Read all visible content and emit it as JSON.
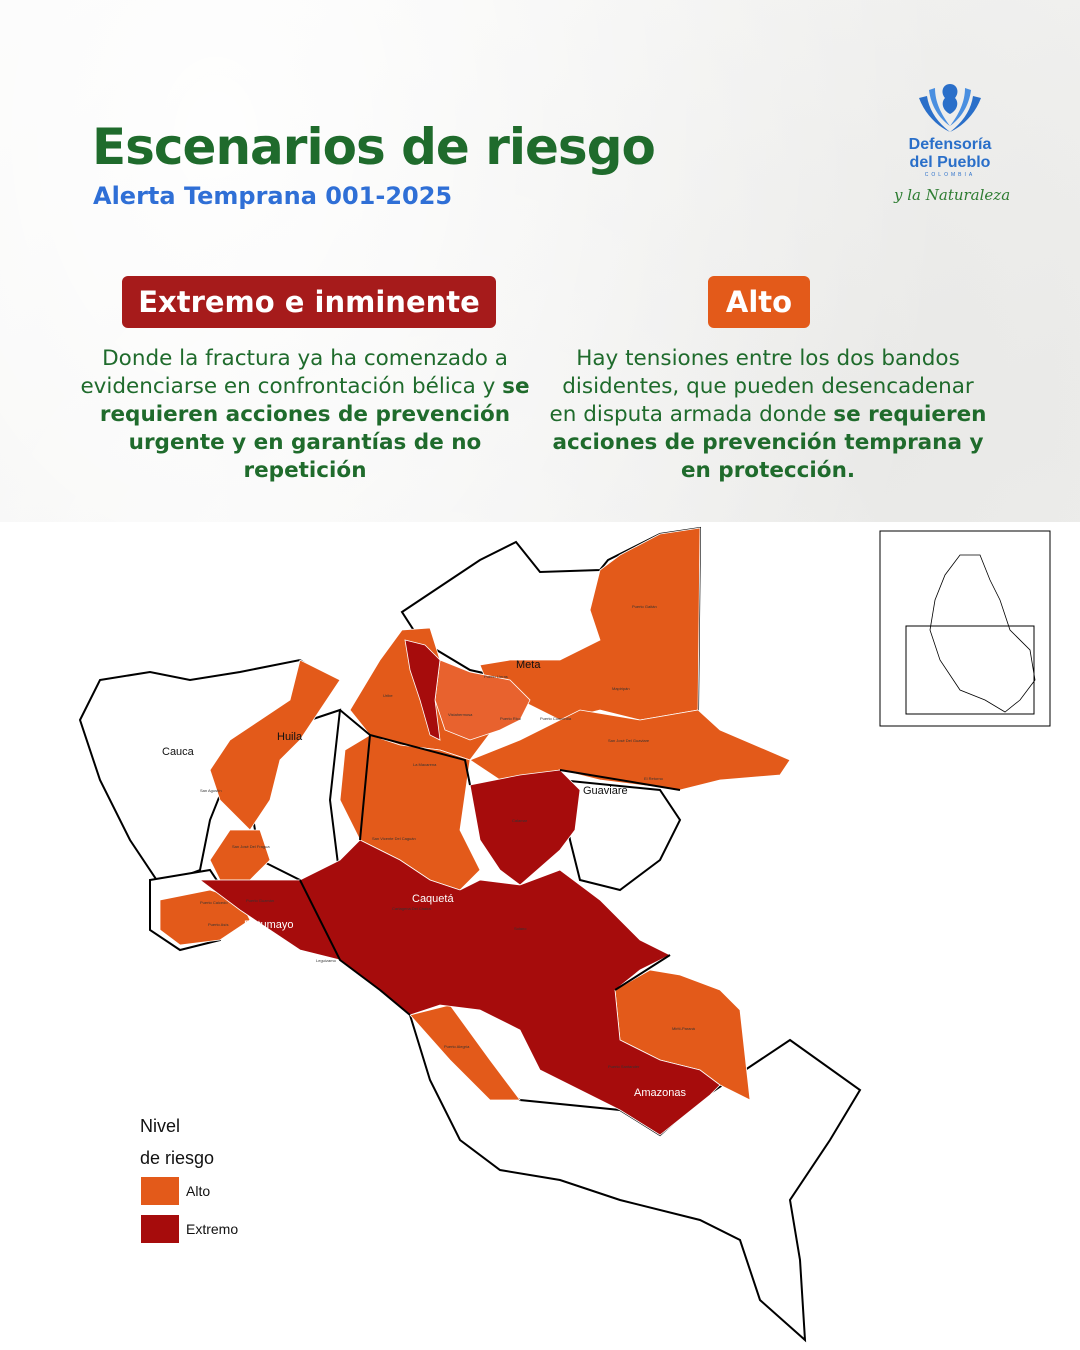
{
  "header": {
    "title": "Escenarios de riesgo",
    "subtitle": "Alerta Temprana 001-2025"
  },
  "logo": {
    "line1": "Defensoría",
    "line2": "del Pueblo",
    "country": "COLOMBIA",
    "tagline": "y la Naturaleza"
  },
  "levels": {
    "extremo": {
      "badge": "Extremo e inminente",
      "text_plain": "Donde la fractura ya ha comenzado a evidenciarse en confrontación bélica y ",
      "text_bold": "se requieren acciones de prevención urgente y en garantías de no repetición"
    },
    "alto": {
      "badge": "Alto",
      "text_plain": "Hay tensiones entre los dos bandos disidentes, que pueden desencadenar en disputa armada donde ",
      "text_bold": "se requieren acciones de prevención temprana y en protección."
    }
  },
  "colors": {
    "title_green": "#1f6b2c",
    "subtitle_blue": "#2f6fd6",
    "extremo": "#a61b1b",
    "alto": "#e35a1a"
  },
  "map": {
    "departments": {
      "meta": "Meta",
      "huila": "Huila",
      "cauca": "Cauca",
      "guaviare": "Guaviare",
      "caqueta": "Caquetá",
      "putumayo": "Putumayo",
      "amazonas": "Amazonas"
    },
    "municipalities": {
      "puerto_gaitan": "Puerto Gaitán",
      "mapiripan": "Mapiripán",
      "puerto_lleras": "Puerto Lleras",
      "puerto_rico": "Puerto Rico",
      "puerto_concordia": "Puerto Concordia",
      "vistahermosa": "Vistahermosa",
      "uribe": "Uribe",
      "la_macarena": "La Macarena",
      "san_jose_guaviare": "San José Del Guaviare",
      "el_retorno": "El Retorno",
      "calamar": "Calamar",
      "san_vicente": "San Vicente Del Caguán",
      "cartagena_chaira": "Cartagena Del Chairá",
      "solano": "Solano",
      "san_jose_fragua": "San José Del Fragua",
      "puerto_guzman": "Puerto Guzmán",
      "puerto_caicedo": "Puerto Caicedo",
      "puerto_asis": "Puerto Asís",
      "leguizamo": "Leguízamo",
      "puerto_alegria": "Puerto Alegría",
      "puerto_santander": "Puerto Santander",
      "mirití_parana": "Mirití-Paraná",
      "san_agustin": "San Agustín"
    },
    "legend": {
      "title_line1": "Nivel",
      "title_line2": "de riesgo",
      "alto": "Alto",
      "extremo": "Extremo"
    }
  }
}
